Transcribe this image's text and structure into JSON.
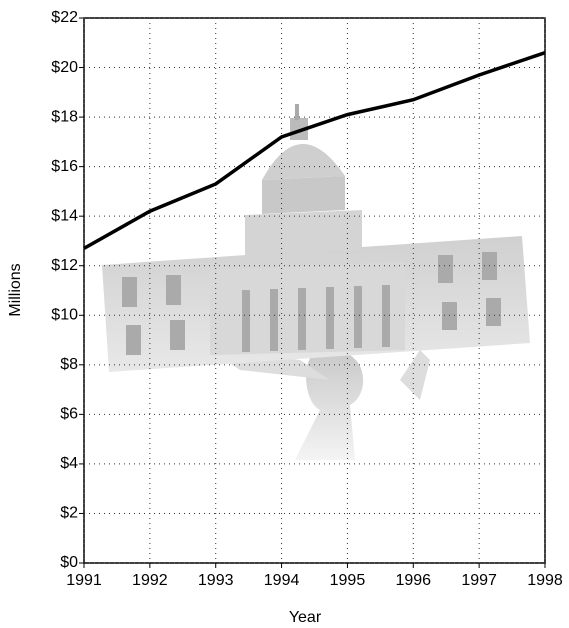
{
  "chart_data": {
    "type": "line",
    "x_label": "Year",
    "y_label": "Millions",
    "x": [
      1991,
      1992,
      1993,
      1994,
      1995,
      1996,
      1997,
      1998
    ],
    "series": [
      {
        "name": "Millions",
        "color": "#000000",
        "values": [
          12.7,
          14.2,
          15.3,
          17.2,
          18.1,
          18.7,
          19.7,
          20.6
        ]
      }
    ],
    "xlim": [
      1991,
      1998
    ],
    "xticks": [
      1991,
      1992,
      1993,
      1994,
      1995,
      1996,
      1997,
      1998
    ],
    "ylim": [
      0,
      22
    ],
    "yticks": [
      {
        "value": 0,
        "label": "$0"
      },
      {
        "value": 2,
        "label": "$2"
      },
      {
        "value": 4,
        "label": "$4"
      },
      {
        "value": 6,
        "label": "$6"
      },
      {
        "value": 8,
        "label": "$8"
      },
      {
        "value": 10,
        "label": "$10"
      },
      {
        "value": 12,
        "label": "$12"
      },
      {
        "value": 14,
        "label": "$14"
      },
      {
        "value": 16,
        "label": "$16"
      },
      {
        "value": 18,
        "label": "$18"
      },
      {
        "value": 20,
        "label": "$20"
      },
      {
        "value": 22,
        "label": "$22"
      }
    ],
    "grid": true
  }
}
